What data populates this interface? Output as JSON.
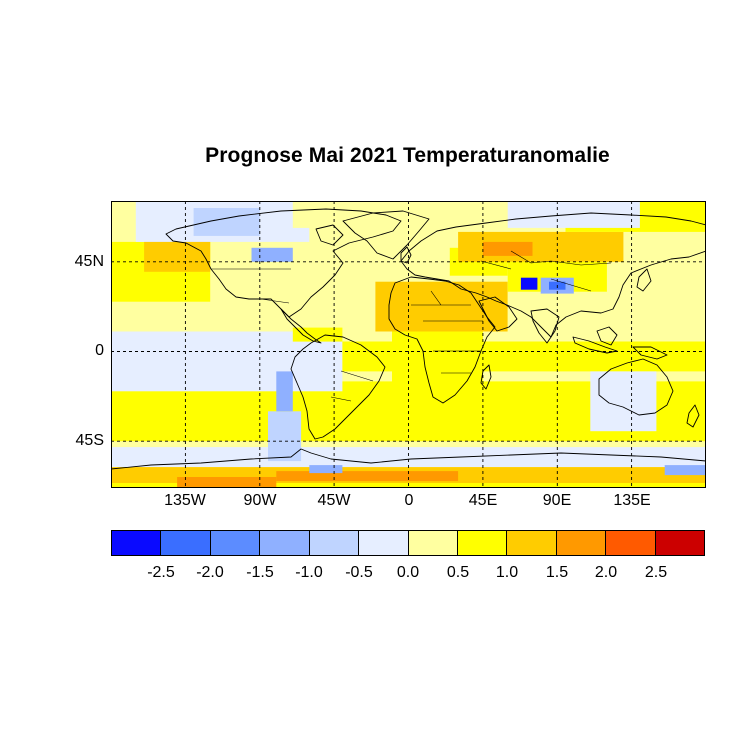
{
  "title": "Prognose Mai 2021 Temperaturanomalie",
  "lat_labels": [
    {
      "value": 45,
      "text": "45N"
    },
    {
      "value": 0,
      "text": "0"
    },
    {
      "value": -45,
      "text": "45S"
    }
  ],
  "lon_labels": [
    {
      "value": -135,
      "text": "135W"
    },
    {
      "value": -90,
      "text": "90W"
    },
    {
      "value": -45,
      "text": "45W"
    },
    {
      "value": 0,
      "text": "0"
    },
    {
      "value": 45,
      "text": "45E"
    },
    {
      "value": 90,
      "text": "90E"
    },
    {
      "value": 135,
      "text": "135E"
    }
  ],
  "colorbar": {
    "colors": [
      "#0a0aff",
      "#3a6eff",
      "#5c8cff",
      "#8fb0ff",
      "#bfd4ff",
      "#e6eeff",
      "#ffffa0",
      "#ffff00",
      "#ffcc00",
      "#ff9900",
      "#ff5a00",
      "#cc0000"
    ],
    "labels": [
      "-2.5",
      "-2.0",
      "-1.5",
      "-1.0",
      "-0.5",
      "0.0",
      "0.5",
      "1.0",
      "1.5",
      "2.0",
      "2.5"
    ]
  },
  "chart_data": {
    "type": "heatmap",
    "title": "Prognose Mai 2021 Temperaturanomalie",
    "xlim": [
      -180,
      180
    ],
    "ylim": [
      -90,
      90
    ],
    "grid": true,
    "levels": [
      -2.5,
      -2.0,
      -1.5,
      -1.0,
      -0.5,
      0.0,
      0.5,
      1.0,
      1.5,
      2.0,
      2.5
    ],
    "background_anomaly": 0.25,
    "regions": [
      {
        "lon": [
          -180,
          180
        ],
        "lat": [
          -45,
          -15
        ],
        "value": 0.7
      },
      {
        "lon": [
          -180,
          -40
        ],
        "lat": [
          -20,
          10
        ],
        "value": -0.2
      },
      {
        "lon": [
          -40,
          180
        ],
        "lat": [
          -10,
          5
        ],
        "value": 0.6
      },
      {
        "lon": [
          -180,
          -120
        ],
        "lat": [
          25,
          55
        ],
        "value": 0.8
      },
      {
        "lon": [
          -160,
          -120
        ],
        "lat": [
          40,
          60
        ],
        "value": 1.2
      },
      {
        "lon": [
          -180,
          180
        ],
        "lat": [
          -90,
          -62
        ],
        "value": 0.8
      },
      {
        "lon": [
          -180,
          180
        ],
        "lat": [
          -66,
          -58
        ],
        "value": 1.3
      },
      {
        "lon": [
          -80,
          30
        ],
        "lat": [
          -65,
          -60
        ],
        "value": 1.6
      },
      {
        "lon": [
          -140,
          -80
        ],
        "lat": [
          -68,
          -63
        ],
        "value": 1.8
      },
      {
        "lon": [
          -180,
          180
        ],
        "lat": [
          -58,
          -48
        ],
        "value": -0.3
      },
      {
        "lon": [
          -60,
          -40
        ],
        "lat": [
          -61,
          -57
        ],
        "value": -1.3
      },
      {
        "lon": [
          155,
          180
        ],
        "lat": [
          -62,
          -57
        ],
        "value": -1.5
      },
      {
        "lon": [
          -165,
          -60
        ],
        "lat": [
          55,
          85
        ],
        "value": -0.4
      },
      {
        "lon": [
          -130,
          -90
        ],
        "lat": [
          58,
          72
        ],
        "value": -0.8
      },
      {
        "lon": [
          -95,
          -70
        ],
        "lat": [
          45,
          52
        ],
        "value": -1.2
      },
      {
        "lon": [
          -70,
          -25
        ],
        "lat": [
          62,
          82
        ],
        "value": 0.2
      },
      {
        "lon": [
          -20,
          60
        ],
        "lat": [
          10,
          35
        ],
        "value": 1.1
      },
      {
        "lon": [
          -10,
          45
        ],
        "lat": [
          -20,
          10
        ],
        "value": 0.8
      },
      {
        "lon": [
          25,
          60
        ],
        "lat": [
          38,
          52
        ],
        "value": 0.9
      },
      {
        "lon": [
          30,
          130
        ],
        "lat": [
          45,
          60
        ],
        "value": 1.2
      },
      {
        "lon": [
          45,
          75
        ],
        "lat": [
          48,
          55
        ],
        "value": 1.7
      },
      {
        "lon": [
          60,
          120
        ],
        "lat": [
          30,
          45
        ],
        "value": 0.8
      },
      {
        "lon": [
          68,
          78
        ],
        "lat": [
          31,
          37
        ],
        "value": -2.6
      },
      {
        "lon": [
          80,
          100
        ],
        "lat": [
          29,
          37
        ],
        "value": -1.4
      },
      {
        "lon": [
          85,
          95
        ],
        "lat": [
          31,
          35
        ],
        "value": -2.2
      },
      {
        "lon": [
          95,
          180
        ],
        "lat": [
          60,
          85
        ],
        "value": 0.8
      },
      {
        "lon": [
          60,
          140
        ],
        "lat": [
          62,
          80
        ],
        "value": -0.3
      },
      {
        "lon": [
          110,
          150
        ],
        "lat": [
          -40,
          -10
        ],
        "value": -0.3
      },
      {
        "lon": [
          -85,
          -65
        ],
        "lat": [
          -55,
          -30
        ],
        "value": -1.0
      },
      {
        "lon": [
          -80,
          -70
        ],
        "lat": [
          -30,
          -10
        ],
        "value": -1.4
      },
      {
        "lon": [
          -70,
          -40
        ],
        "lat": [
          5,
          12
        ],
        "value": 0.7
      },
      {
        "lon": [
          -20,
          10
        ],
        "lat": [
          -5,
          5
        ],
        "value": 0.7
      }
    ]
  }
}
